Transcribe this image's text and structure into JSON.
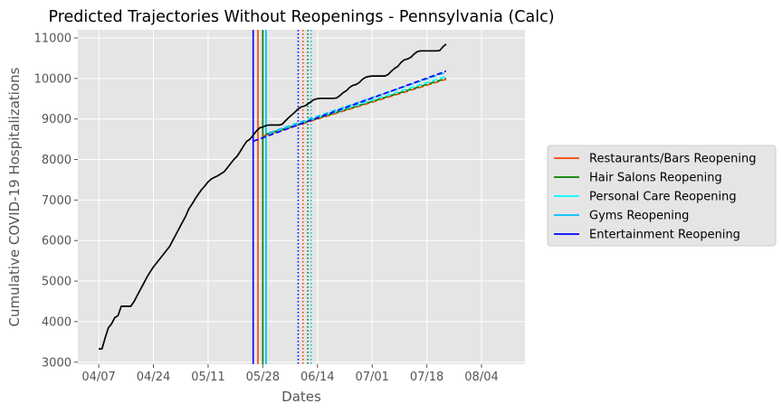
{
  "chart_data": {
    "type": "line",
    "title": "Predicted Trajectories Without Reopenings - Pennsylvania (Calc)",
    "xlabel": "Dates",
    "ylabel": "Cumulative COVID-19 Hospitalizations",
    "x_ticks": [
      "04/07",
      "04/24",
      "05/11",
      "05/28",
      "06/14",
      "07/01",
      "07/18",
      "08/04"
    ],
    "x_tick_days": [
      0,
      17,
      34,
      51,
      68,
      85,
      102,
      119
    ],
    "xlim_days": [
      -6.5,
      132.5
    ],
    "y_ticks": [
      3000,
      4000,
      5000,
      6000,
      7000,
      8000,
      9000,
      10000,
      11000
    ],
    "ylim": [
      2950,
      11200
    ],
    "grid": true,
    "legend_position": "right",
    "legend": [
      {
        "label": "Restaurants/Bars Reopening",
        "color": "#ff4500"
      },
      {
        "label": "Hair Salons Reopening",
        "color": "#008000"
      },
      {
        "label": "Personal Care Reopening",
        "color": "#00ffff"
      },
      {
        "label": "Gyms Reopening",
        "color": "#00bfff"
      },
      {
        "label": "Entertainment Reopening",
        "color": "#0000ff"
      }
    ],
    "actual": {
      "color": "#000000",
      "points": [
        [
          0,
          3330
        ],
        [
          1,
          3330
        ],
        [
          2,
          3600
        ],
        [
          3,
          3850
        ],
        [
          4,
          3950
        ],
        [
          5,
          4100
        ],
        [
          6,
          4150
        ],
        [
          7,
          4380
        ],
        [
          10,
          4380
        ],
        [
          11,
          4500
        ],
        [
          12,
          4650
        ],
        [
          13,
          4800
        ],
        [
          14,
          4950
        ],
        [
          15,
          5100
        ],
        [
          16,
          5230
        ],
        [
          17,
          5350
        ],
        [
          18,
          5450
        ],
        [
          19,
          5550
        ],
        [
          20,
          5650
        ],
        [
          21,
          5750
        ],
        [
          22,
          5850
        ],
        [
          23,
          6000
        ],
        [
          24,
          6150
        ],
        [
          25,
          6300
        ],
        [
          26,
          6450
        ],
        [
          27,
          6600
        ],
        [
          28,
          6780
        ],
        [
          29,
          6900
        ],
        [
          30,
          7030
        ],
        [
          31,
          7150
        ],
        [
          32,
          7260
        ],
        [
          33,
          7350
        ],
        [
          34,
          7450
        ],
        [
          35,
          7520
        ],
        [
          36,
          7560
        ],
        [
          37,
          7600
        ],
        [
          38,
          7650
        ],
        [
          39,
          7700
        ],
        [
          40,
          7800
        ],
        [
          41,
          7900
        ],
        [
          42,
          8000
        ],
        [
          43,
          8080
        ],
        [
          44,
          8200
        ],
        [
          45,
          8330
        ],
        [
          46,
          8450
        ],
        [
          47,
          8500
        ],
        [
          48,
          8600
        ],
        [
          49,
          8700
        ],
        [
          50,
          8780
        ],
        [
          51,
          8800
        ],
        [
          52,
          8840
        ],
        [
          53,
          8850
        ],
        [
          54,
          8850
        ],
        [
          55,
          8850
        ],
        [
          56,
          8850
        ],
        [
          57,
          8870
        ],
        [
          58,
          8950
        ],
        [
          59,
          9030
        ],
        [
          60,
          9100
        ],
        [
          61,
          9170
        ],
        [
          62,
          9250
        ],
        [
          63,
          9300
        ],
        [
          64,
          9320
        ],
        [
          65,
          9370
        ],
        [
          66,
          9430
        ],
        [
          67,
          9480
        ],
        [
          68,
          9500
        ],
        [
          69,
          9510
        ],
        [
          70,
          9510
        ],
        [
          71,
          9510
        ],
        [
          72,
          9510
        ],
        [
          73,
          9510
        ],
        [
          74,
          9520
        ],
        [
          75,
          9580
        ],
        [
          76,
          9650
        ],
        [
          77,
          9700
        ],
        [
          78,
          9780
        ],
        [
          79,
          9830
        ],
        [
          80,
          9850
        ],
        [
          81,
          9900
        ],
        [
          82,
          9980
        ],
        [
          83,
          10030
        ],
        [
          84,
          10050
        ],
        [
          85,
          10060
        ],
        [
          86,
          10060
        ],
        [
          87,
          10060
        ],
        [
          88,
          10060
        ],
        [
          89,
          10060
        ],
        [
          90,
          10100
        ],
        [
          91,
          10180
        ],
        [
          92,
          10250
        ],
        [
          93,
          10300
        ],
        [
          94,
          10400
        ],
        [
          95,
          10460
        ],
        [
          96,
          10480
        ],
        [
          97,
          10520
        ],
        [
          98,
          10600
        ],
        [
          99,
          10660
        ],
        [
          100,
          10680
        ],
        [
          101,
          10680
        ],
        [
          102,
          10680
        ],
        [
          103,
          10680
        ],
        [
          104,
          10680
        ],
        [
          105,
          10680
        ],
        [
          106,
          10690
        ],
        [
          107,
          10780
        ],
        [
          108,
          10850
        ]
      ]
    },
    "predictions": [
      {
        "name": "Restaurants/Bars Reopening",
        "color": "#ff4500",
        "points": [
          [
            51,
            8580
          ],
          [
            108,
            9980
          ]
        ]
      },
      {
        "name": "Hair Salons Reopening",
        "color": "#008000",
        "points": [
          [
            52,
            8620
          ],
          [
            108,
            10000
          ]
        ]
      },
      {
        "name": "Personal Care Reopening",
        "color": "#00ffff",
        "points": [
          [
            53,
            8650
          ],
          [
            108,
            10050
          ]
        ]
      },
      {
        "name": "Gyms Reopening",
        "color": "#00bfff",
        "points": [
          [
            53,
            8660
          ],
          [
            108,
            10150
          ]
        ]
      },
      {
        "name": "Entertainment Reopening",
        "color": "#0000ff",
        "points": [
          [
            48,
            8450
          ],
          [
            108,
            10180
          ]
        ]
      }
    ],
    "reopening_lines": [
      {
        "name": "Restaurants/Bars Reopening",
        "color": "#ff4500",
        "solid_day": 49.5,
        "dotted_day": 63.5
      },
      {
        "name": "Hair Salons Reopening",
        "color": "#008000",
        "solid_day": 51,
        "dotted_day": 65
      },
      {
        "name": "Personal Care Reopening",
        "color": "#00ffff",
        "solid_day": 52,
        "dotted_day": 66
      },
      {
        "name": "Gyms Reopening",
        "color": "#00bfff",
        "solid_day": 52,
        "dotted_day": 66
      },
      {
        "name": "Entertainment Reopening",
        "color": "#0000ff",
        "solid_day": 48,
        "dotted_day": 62
      }
    ]
  }
}
